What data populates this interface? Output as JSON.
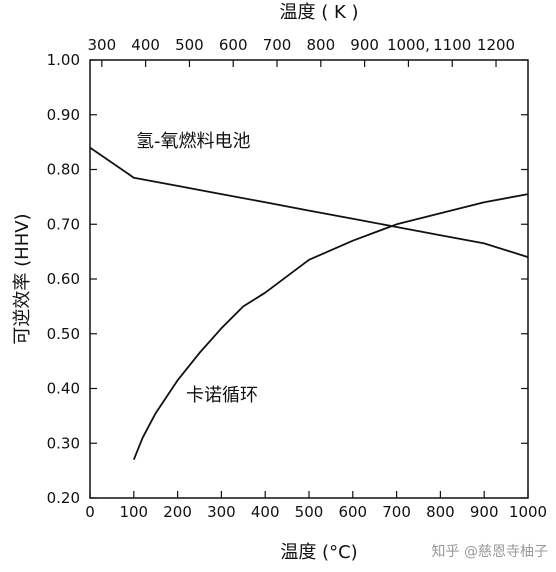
{
  "chart_data": {
    "type": "line",
    "xlabel": "温度 (°C)",
    "x2label": "温度 ( K )",
    "ylabel": "可逆效率 (HHV)",
    "xlim": [
      0,
      1000
    ],
    "ylim": [
      0.2,
      1.0
    ],
    "x2lim": [
      273,
      1273
    ],
    "xticks": [
      "0",
      "100",
      "200",
      "300",
      "400",
      "500",
      "600",
      "700",
      "800",
      "900",
      "1000"
    ],
    "yticks": [
      "0.20",
      "0.30",
      "0.40",
      "0.50",
      "0.60",
      "0.70",
      "0.80",
      "0.90",
      "1.00"
    ],
    "x2ticks": [
      "300",
      "400",
      "500",
      "600",
      "700",
      "800",
      "900",
      "1000,",
      "1100",
      "1200"
    ],
    "grid": false,
    "series": [
      {
        "name": "氢-氧燃料电池",
        "x": [
          0,
          100,
          200,
          300,
          400,
          500,
          600,
          700,
          800,
          900,
          1000
        ],
        "y": [
          0.84,
          0.785,
          0.77,
          0.755,
          0.74,
          0.725,
          0.71,
          0.695,
          0.68,
          0.665,
          0.64
        ]
      },
      {
        "name": "卡诺循环",
        "x": [
          100,
          120,
          150,
          200,
          250,
          300,
          350,
          400,
          500,
          600,
          700,
          800,
          900,
          1000
        ],
        "y": [
          0.27,
          0.31,
          0.355,
          0.415,
          0.465,
          0.51,
          0.55,
          0.575,
          0.635,
          0.67,
          0.7,
          0.72,
          0.74,
          0.755
        ]
      }
    ]
  },
  "watermark": "知乎 @慈恩寺柚子"
}
